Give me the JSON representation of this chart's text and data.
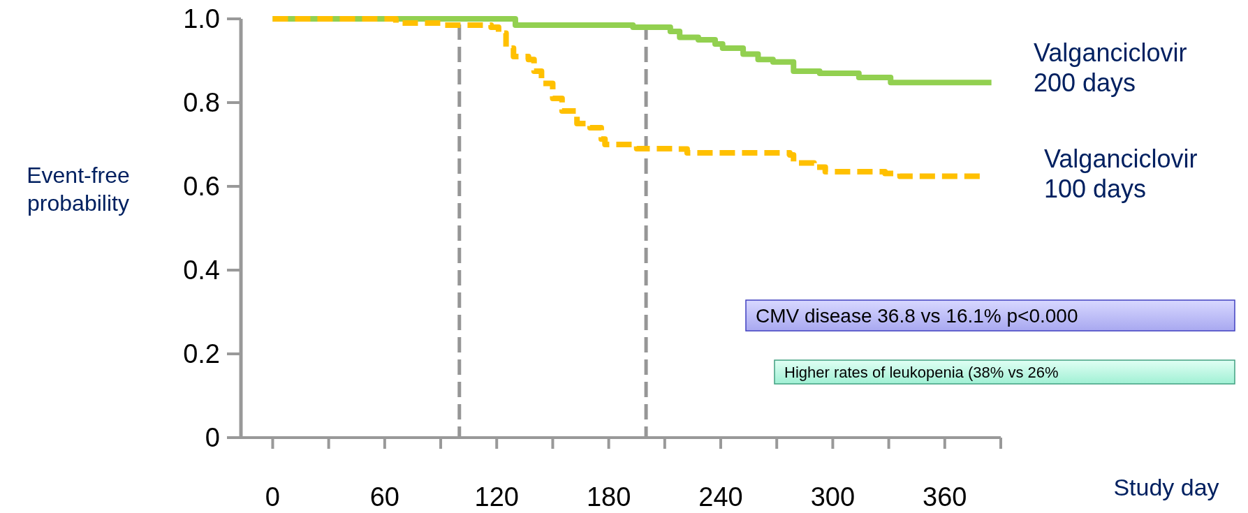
{
  "chart_data": {
    "type": "step",
    "xlabel": "Study day",
    "ylabel": "Event-free probability",
    "xlim": [
      -17,
      390
    ],
    "ylim": [
      0,
      1
    ],
    "xticks": [
      0,
      {
        "value": 30,
        "label": null
      },
      60,
      {
        "value": 90,
        "label": null
      },
      120,
      {
        "value": 150,
        "label": null
      },
      180,
      {
        "value": 210,
        "label": null
      },
      240,
      {
        "value": 270,
        "label": null
      },
      300,
      {
        "value": 330,
        "label": null
      },
      360,
      {
        "value": 390,
        "label": null
      }
    ],
    "yticks": [
      0,
      0.2,
      0.4,
      0.6,
      0.8,
      {
        "value": 1,
        "label": "1.0"
      }
    ],
    "grid": false,
    "series": [
      {
        "name": "Valganciclovir 200 days",
        "color": "#92d050",
        "line_style": "solid",
        "x": [
          0,
          130,
          193,
          213,
          218,
          228,
          237,
          241,
          252,
          260,
          268,
          279,
          293,
          314,
          331,
          385
        ],
        "values": [
          1.0,
          0.985,
          0.98,
          0.97,
          0.956,
          0.95,
          0.94,
          0.93,
          0.916,
          0.903,
          0.897,
          0.875,
          0.87,
          0.86,
          0.848,
          0.848
        ]
      },
      {
        "name": "Valganciclovir 100 days",
        "color": "#ffc000",
        "line_style": "dashed",
        "x": [
          0,
          66,
          91,
          117,
          121,
          125,
          129,
          137,
          140,
          144,
          150,
          155,
          163,
          170,
          176,
          178,
          195,
          214,
          222,
          277,
          279,
          290,
          296,
          328,
          336,
          380
        ],
        "values": [
          1.0,
          0.99,
          0.985,
          0.98,
          0.966,
          0.93,
          0.91,
          0.903,
          0.875,
          0.846,
          0.81,
          0.78,
          0.75,
          0.74,
          0.713,
          0.7,
          0.69,
          0.689,
          0.68,
          0.675,
          0.656,
          0.646,
          0.635,
          0.631,
          0.624,
          0.624
        ]
      }
    ],
    "ref_lines": [
      {
        "axis": "x",
        "value": 100,
        "color": "#969696",
        "line_style": "dashed"
      },
      {
        "axis": "x",
        "value": 200,
        "color": "#969696",
        "line_style": "dashed"
      }
    ],
    "annotations": [
      "CMV disease 36.8 vs 16.1% p<0.000",
      "Higher rates of leukopenia (38% vs 26%"
    ]
  }
}
